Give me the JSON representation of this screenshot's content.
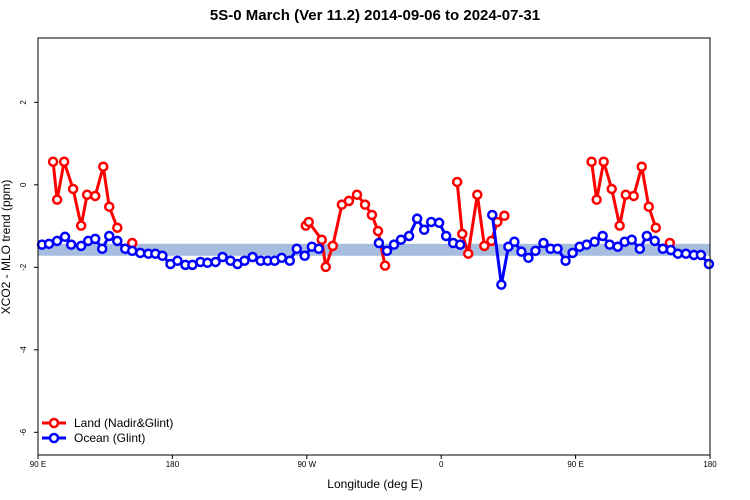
{
  "chart_data": {
    "type": "line",
    "title": "5S-0 March (Ver 11.2)   2014-09-06 to 2024-07-31",
    "xlabel": "Longitude (deg E)",
    "ylabel": "XCO2 - MLO trend (ppm)",
    "xlim": [
      90,
      540
    ],
    "ylim": [
      -6.55,
      3.56
    ],
    "xticks": [
      {
        "value": 90,
        "label": "90 E"
      },
      180,
      {
        "value": 270,
        "label": "90 W"
      },
      {
        "value": 360,
        "label": "0"
      },
      {
        "value": 450,
        "label": "90 E"
      },
      {
        "value": 540,
        "label": "180"
      }
    ],
    "yticks": [
      -6,
      -4,
      -2,
      0,
      2
    ],
    "band": [
      -1.72,
      -1.43
    ],
    "band_color": "#a7bddf",
    "legend": "bottom-left",
    "series": [
      {
        "name": "Land (Nadir&Glint)",
        "color": "#ff0000",
        "x": [
          100.1,
          102.8,
          107.5,
          113.5,
          118.9,
          122.9,
          128.3,
          133.7,
          137.7,
          143.1,
          null,
          153.1,
          null,
          269.3,
          271.3,
          280.0,
          282.7,
          287.4,
          293.5,
          298.2,
          303.6,
          309.0,
          313.6,
          317.7,
          322.4,
          null,
          370.7,
          374.1,
          378.1,
          384.2,
          388.9,
          393.6,
          397.6,
          402.3,
          null,
          460.7,
          464.1,
          468.8,
          474.2,
          479.5,
          483.6,
          488.9,
          494.3,
          499.0,
          503.7,
          null,
          513.1
        ],
        "values": [
          0.56,
          -0.36,
          0.56,
          -0.1,
          -0.99,
          -0.24,
          -0.27,
          0.44,
          -0.53,
          -1.04,
          null,
          -1.41,
          null,
          -0.99,
          -0.9,
          -1.33,
          -1.99,
          -1.48,
          -0.48,
          -0.39,
          -0.24,
          -0.48,
          -0.73,
          -1.12,
          -1.96,
          null,
          0.07,
          -1.19,
          -1.67,
          -0.24,
          -1.48,
          -1.36,
          -0.9,
          -0.75,
          null,
          0.56,
          -0.36,
          0.56,
          -0.1,
          -0.99,
          -0.24,
          -0.27,
          0.44,
          -0.53,
          -1.04,
          null,
          -1.41
        ]
      },
      {
        "name": "Ocean (Glint)",
        "color": "#0000ff",
        "x": [
          92.7,
          97.4,
          102.8,
          108.1,
          112.2,
          118.9,
          123.6,
          128.3,
          133.0,
          137.7,
          143.1,
          148.4,
          153.1,
          158.5,
          163.9,
          168.6,
          173.3,
          178.7,
          183.4,
          188.7,
          193.4,
          198.8,
          203.5,
          208.9,
          213.6,
          218.9,
          223.6,
          228.3,
          233.7,
          239.1,
          243.8,
          248.5,
          253.2,
          258.6,
          263.3,
          268.6,
          273.4,
          278.0,
          null,
          318.3,
          323.7,
          328.4,
          333.1,
          338.5,
          343.9,
          348.6,
          353.3,
          358.6,
          363.3,
          368.0,
          372.7,
          null,
          394.2,
          400.3,
          405.0,
          409.0,
          413.7,
          418.4,
          423.1,
          428.5,
          433.2,
          437.9,
          443.3,
          448.0,
          452.7,
          457.4,
          462.7,
          468.1,
          472.8,
          478.2,
          482.9,
          487.6,
          493.0,
          497.7,
          503.0,
          508.4,
          513.8,
          518.5,
          523.9,
          529.2,
          533.9,
          539.3
        ],
        "values": [
          -1.45,
          -1.43,
          -1.36,
          -1.26,
          -1.45,
          -1.48,
          -1.36,
          -1.31,
          -1.55,
          -1.24,
          -1.36,
          -1.55,
          -1.6,
          -1.65,
          -1.67,
          -1.67,
          -1.72,
          -1.92,
          -1.84,
          -1.94,
          -1.94,
          -1.87,
          -1.89,
          -1.87,
          -1.75,
          -1.84,
          -1.92,
          -1.84,
          -1.75,
          -1.84,
          -1.84,
          -1.84,
          -1.77,
          -1.84,
          -1.55,
          -1.72,
          -1.5,
          -1.55,
          null,
          -1.41,
          -1.6,
          -1.45,
          -1.33,
          -1.24,
          -0.82,
          -1.09,
          -0.9,
          -0.92,
          -1.24,
          -1.41,
          -1.45,
          null,
          -0.73,
          -2.42,
          -1.5,
          -1.38,
          -1.62,
          -1.77,
          -1.6,
          -1.41,
          -1.55,
          -1.55,
          -1.84,
          -1.65,
          -1.5,
          -1.45,
          -1.38,
          -1.24,
          -1.45,
          -1.5,
          -1.38,
          -1.33,
          -1.55,
          -1.24,
          -1.36,
          -1.55,
          -1.58,
          -1.67,
          -1.67,
          -1.7,
          -1.7,
          -1.92
        ]
      }
    ]
  }
}
